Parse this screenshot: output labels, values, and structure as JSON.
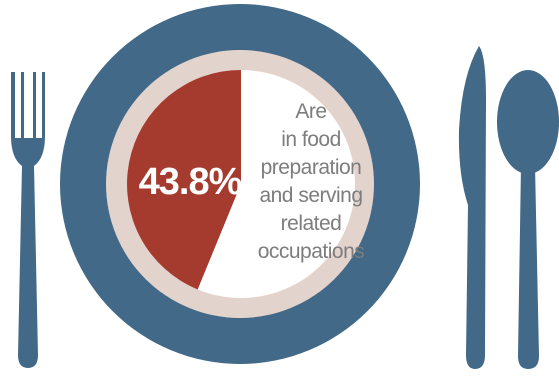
{
  "chart_data": {
    "type": "pie",
    "slices": [
      {
        "value": 43.8
      },
      {
        "value": 56.2
      }
    ],
    "percent_label": "43.8%",
    "description_lines": [
      "Are",
      "in food",
      "preparation",
      "and serving",
      "related",
      "occupations"
    ]
  },
  "colors": {
    "highlight_slice": "#a53a2e",
    "remaining_slice": "#ffffff",
    "plate_rim": "#426987",
    "plate_inner_ring": "#e3d3cd",
    "cutlery": "#426987",
    "description_text": "#7d7d7d",
    "percent_text": "#ffffff"
  },
  "icons": [
    "fork-icon",
    "knife-icon",
    "spoon-icon",
    "plate-icon"
  ]
}
